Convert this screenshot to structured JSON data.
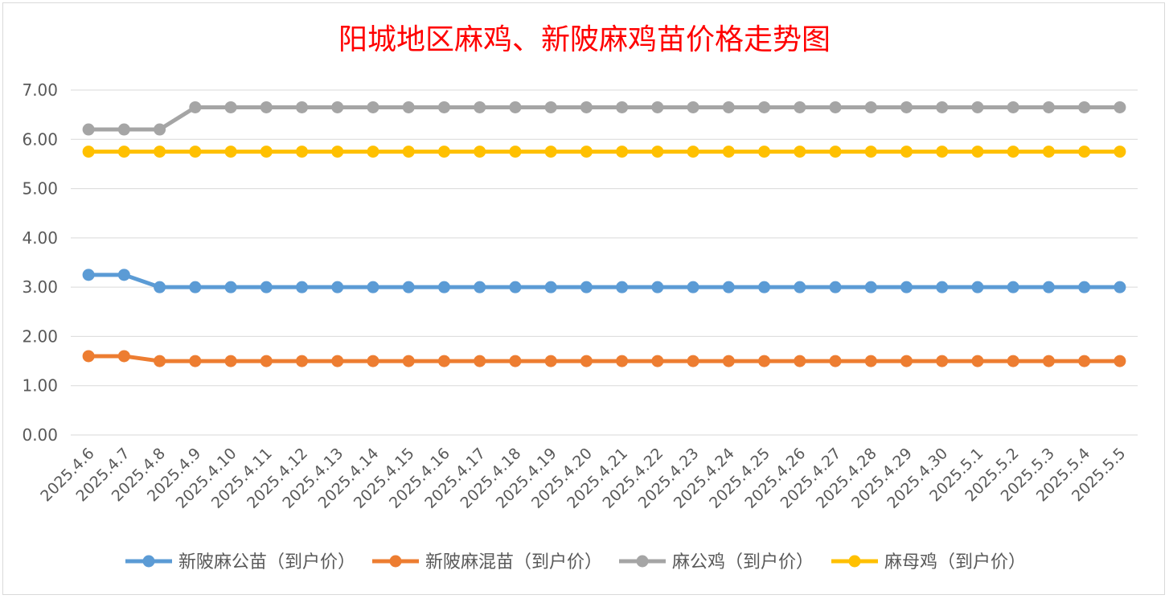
{
  "chart_data": {
    "type": "line",
    "title": "阳城地区麻鸡、新陂麻鸡苗价格走势图",
    "xlabel": "",
    "ylabel": "",
    "ylim": [
      0,
      7
    ],
    "yticks": [
      "0.00",
      "1.00",
      "2.00",
      "3.00",
      "4.00",
      "5.00",
      "6.00",
      "7.00"
    ],
    "grid": true,
    "legend_position": "bottom",
    "categories": [
      "2025.4.6",
      "2025.4.7",
      "2025.4.8",
      "2025.4.9",
      "2025.4.10",
      "2025.4.11",
      "2025.4.12",
      "2025.4.13",
      "2025.4.14",
      "2025.4.15",
      "2025.4.16",
      "2025.4.17",
      "2025.4.18",
      "2025.4.19",
      "2025.4.20",
      "2025.4.21",
      "2025.4.22",
      "2025.4.23",
      "2025.4.24",
      "2025.4.25",
      "2025.4.26",
      "2025.4.27",
      "2025.4.28",
      "2025.4.29",
      "2025.4.30",
      "2025.5.1",
      "2025.5.2",
      "2025.5.3",
      "2025.5.4",
      "2025.5.5"
    ],
    "series": [
      {
        "name": "新陂麻公苗（到户价）",
        "color": "#5b9bd5",
        "values": [
          3.25,
          3.25,
          3.0,
          3.0,
          3.0,
          3.0,
          3.0,
          3.0,
          3.0,
          3.0,
          3.0,
          3.0,
          3.0,
          3.0,
          3.0,
          3.0,
          3.0,
          3.0,
          3.0,
          3.0,
          3.0,
          3.0,
          3.0,
          3.0,
          3.0,
          3.0,
          3.0,
          3.0,
          3.0,
          3.0
        ]
      },
      {
        "name": "新陂麻混苗（到户价）",
        "color": "#ed7d31",
        "values": [
          1.6,
          1.6,
          1.5,
          1.5,
          1.5,
          1.5,
          1.5,
          1.5,
          1.5,
          1.5,
          1.5,
          1.5,
          1.5,
          1.5,
          1.5,
          1.5,
          1.5,
          1.5,
          1.5,
          1.5,
          1.5,
          1.5,
          1.5,
          1.5,
          1.5,
          1.5,
          1.5,
          1.5,
          1.5,
          1.5
        ]
      },
      {
        "name": "麻公鸡（到户价）",
        "color": "#a5a5a5",
        "values": [
          6.2,
          6.2,
          6.2,
          6.65,
          6.65,
          6.65,
          6.65,
          6.65,
          6.65,
          6.65,
          6.65,
          6.65,
          6.65,
          6.65,
          6.65,
          6.65,
          6.65,
          6.65,
          6.65,
          6.65,
          6.65,
          6.65,
          6.65,
          6.65,
          6.65,
          6.65,
          6.65,
          6.65,
          6.65,
          6.65
        ]
      },
      {
        "name": "麻母鸡（到户价）",
        "color": "#ffc000",
        "values": [
          5.75,
          5.75,
          5.75,
          5.75,
          5.75,
          5.75,
          5.75,
          5.75,
          5.75,
          5.75,
          5.75,
          5.75,
          5.75,
          5.75,
          5.75,
          5.75,
          5.75,
          5.75,
          5.75,
          5.75,
          5.75,
          5.75,
          5.75,
          5.75,
          5.75,
          5.75,
          5.75,
          5.75,
          5.75,
          5.75
        ]
      }
    ]
  }
}
